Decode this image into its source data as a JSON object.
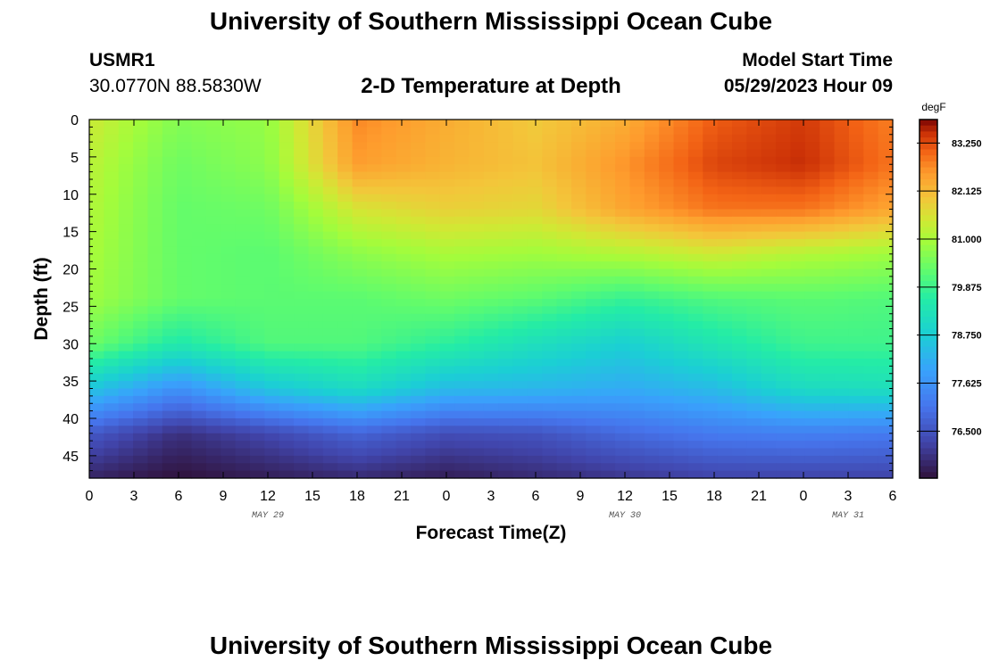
{
  "header": {
    "title": "University of Southern Mississippi Ocean Cube",
    "station_id": "USMR1",
    "station_coords": "30.0770N  88.5830W",
    "subtitle": "2-D Temperature at Depth",
    "model_start_label": "Model Start Time",
    "model_start_value": "05/29/2023 Hour 09"
  },
  "footer": {
    "title": "University of Southern Mississippi Ocean Cube"
  },
  "chart_data": {
    "type": "heatmap",
    "title": "2-D Temperature at Depth",
    "xlabel": "Forecast Time(Z)",
    "ylabel": "Depth (ft)",
    "x_tick_labels": [
      "0",
      "3",
      "6",
      "9",
      "12",
      "15",
      "18",
      "21",
      "0",
      "3",
      "6",
      "9",
      "12",
      "15",
      "18",
      "21",
      "0",
      "3",
      "6"
    ],
    "date_labels": [
      {
        "label": "MAY 29",
        "tick_index": 4
      },
      {
        "label": "MAY 30",
        "tick_index": 12
      },
      {
        "label": "MAY 31",
        "tick_index": 17
      }
    ],
    "y_ticks": [
      0,
      5,
      10,
      15,
      20,
      25,
      30,
      35,
      40,
      45
    ],
    "y_range": [
      0,
      48
    ],
    "colorbar": {
      "unit": "degF",
      "min": 75.4,
      "max": 83.8,
      "tick_labels": [
        "83.250",
        "82.125",
        "81.000",
        "79.875",
        "78.750",
        "77.625",
        "76.500"
      ]
    },
    "grid_note": "temperature (degF) rows sampled at depths 0,6,12,18,24,30,36,42,48 ft; columns every 6 forecast hours from hour 0 to hour 54",
    "grid_depths": [
      0,
      6,
      12,
      18,
      24,
      30,
      36,
      42,
      48
    ],
    "grid_hours": [
      0,
      6,
      12,
      18,
      24,
      30,
      36,
      42,
      48,
      54
    ],
    "temperature": [
      [
        81.4,
        80.6,
        80.8,
        82.7,
        82.3,
        81.9,
        82.3,
        83.1,
        83.4,
        82.8
      ],
      [
        81.2,
        80.4,
        80.7,
        82.5,
        82.2,
        82.0,
        82.6,
        83.3,
        83.5,
        82.9
      ],
      [
        81.1,
        80.3,
        80.4,
        81.5,
        81.8,
        81.7,
        82.4,
        82.9,
        82.9,
        82.4
      ],
      [
        81.0,
        80.3,
        80.2,
        80.7,
        81.0,
        80.9,
        81.1,
        81.4,
        81.1,
        80.9
      ],
      [
        80.9,
        80.3,
        80.2,
        80.2,
        80.4,
        80.2,
        79.8,
        80.1,
        80.2,
        80.1
      ],
      [
        80.4,
        79.5,
        80.1,
        80.1,
        79.7,
        79.2,
        78.8,
        79.4,
        79.9,
        79.9
      ],
      [
        78.6,
        77.6,
        78.6,
        79.1,
        78.4,
        78.3,
        78.1,
        78.4,
        79.1,
        79.2
      ],
      [
        76.6,
        75.9,
        76.3,
        76.8,
        76.4,
        76.5,
        76.9,
        77.2,
        77.3,
        77.2
      ],
      [
        75.7,
        75.4,
        75.6,
        75.8,
        75.6,
        75.8,
        76.0,
        76.2,
        76.2,
        76.2
      ]
    ]
  }
}
